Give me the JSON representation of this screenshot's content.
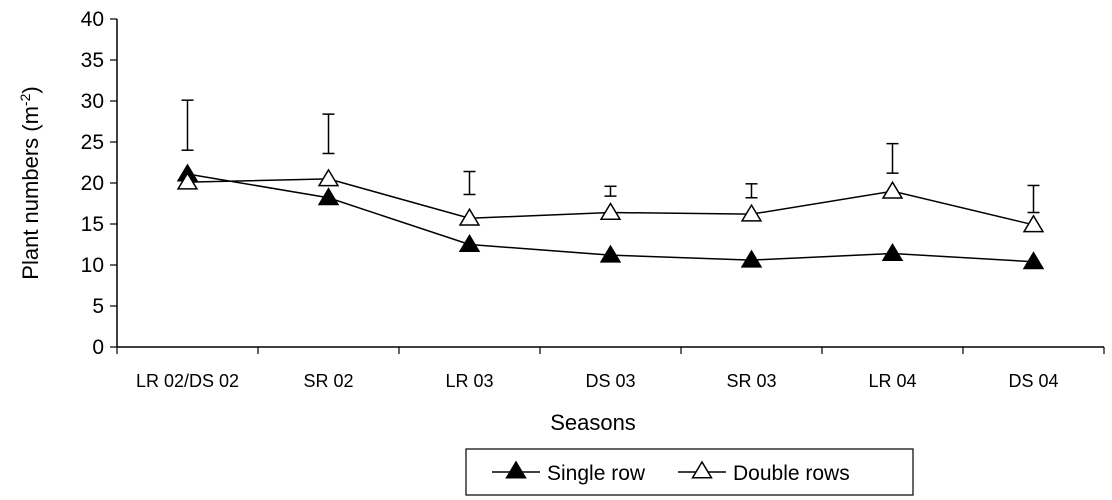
{
  "chart_data": {
    "type": "line",
    "title": "",
    "xlabel": "Seasons",
    "ylabel": "Plant numbers (m",
    "ylabel_sup": "-2",
    "ylabel_close": ")",
    "ylim": [
      0,
      40
    ],
    "yticks": [
      0,
      5,
      10,
      15,
      20,
      25,
      30,
      35,
      40
    ],
    "categories": [
      "LR 02/DS 02",
      "SR 02",
      "LR 03",
      "DS 03",
      "SR 03",
      "LR 04",
      "DS 04"
    ],
    "series": [
      {
        "name": "Single row",
        "marker": "filled-triangle",
        "values": [
          21.1,
          18.2,
          12.5,
          11.2,
          10.6,
          11.4,
          10.4
        ]
      },
      {
        "name": "Double rows",
        "marker": "open-triangle",
        "values": [
          20.1,
          20.5,
          15.7,
          16.4,
          16.2,
          19.0,
          14.9
        ]
      }
    ],
    "error_bars": {
      "low": [
        24.0,
        23.6,
        18.6,
        18.4,
        18.2,
        21.2,
        16.4
      ],
      "high": [
        30.1,
        28.4,
        21.4,
        19.6,
        19.9,
        24.8,
        19.7
      ]
    },
    "grid": false,
    "legend_position": "bottom-center"
  }
}
